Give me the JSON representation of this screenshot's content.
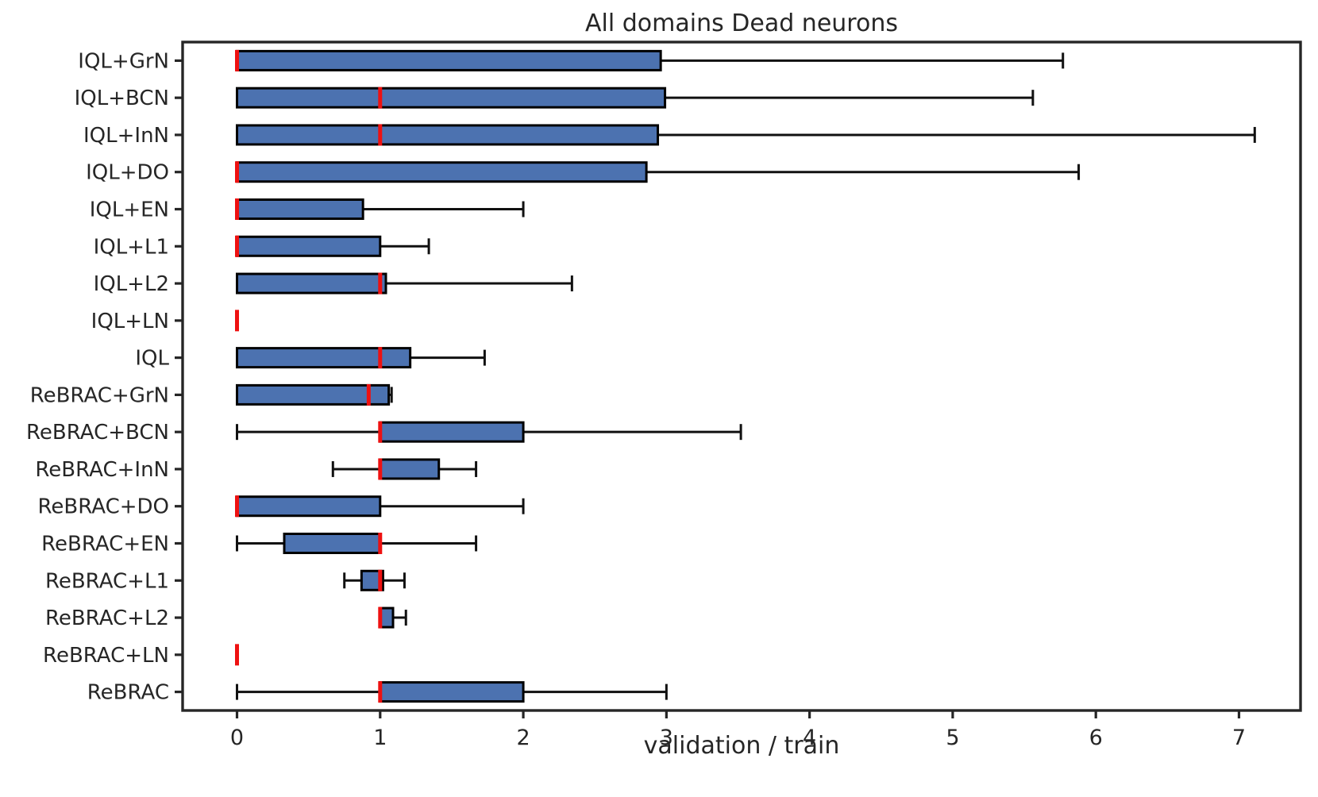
{
  "chart_data": {
    "type": "boxplot",
    "orientation": "horizontal",
    "title": "All domains Dead neurons",
    "xlabel": "validation / train",
    "xlim": [
      -0.38,
      7.43
    ],
    "xticks": [
      0,
      1,
      2,
      3,
      4,
      5,
      6,
      7
    ],
    "grid": false,
    "legend": "none",
    "categories": [
      "IQL+GrN",
      "IQL+BCN",
      "IQL+InN",
      "IQL+DO",
      "IQL+EN",
      "IQL+L1",
      "IQL+L2",
      "IQL+LN",
      "IQL",
      "ReBRAC+GrN",
      "ReBRAC+BCN",
      "ReBRAC+InN",
      "ReBRAC+DO",
      "ReBRAC+EN",
      "ReBRAC+L1",
      "ReBRAC+L2",
      "ReBRAC+LN",
      "ReBRAC"
    ],
    "boxes": [
      {
        "label": "IQL+GrN",
        "whislo": 0,
        "q1": 0,
        "med": 0,
        "q3": 2.96,
        "whishi": 5.77
      },
      {
        "label": "IQL+BCN",
        "whislo": 0,
        "q1": 0,
        "med": 1.0,
        "q3": 2.99,
        "whishi": 5.56
      },
      {
        "label": "IQL+InN",
        "whislo": 0,
        "q1": 0,
        "med": 1.0,
        "q3": 2.94,
        "whishi": 7.11
      },
      {
        "label": "IQL+DO",
        "whislo": 0,
        "q1": 0,
        "med": 0,
        "q3": 2.86,
        "whishi": 5.88
      },
      {
        "label": "IQL+EN",
        "whislo": 0,
        "q1": 0,
        "med": 0,
        "q3": 0.88,
        "whishi": 2.0
      },
      {
        "label": "IQL+L1",
        "whislo": 0,
        "q1": 0,
        "med": 0,
        "q3": 1.0,
        "whishi": 1.34
      },
      {
        "label": "IQL+L2",
        "whislo": 0,
        "q1": 0,
        "med": 1.0,
        "q3": 1.04,
        "whishi": 2.34
      },
      {
        "label": "IQL+LN",
        "whislo": 0,
        "q1": 0,
        "med": 0,
        "q3": 0,
        "whishi": 0
      },
      {
        "label": "IQL",
        "whislo": 0,
        "q1": 0,
        "med": 1.0,
        "q3": 1.21,
        "whishi": 1.73
      },
      {
        "label": "ReBRAC+GrN",
        "whislo": 0,
        "q1": 0,
        "med": 0.92,
        "q3": 1.06,
        "whishi": 1.08
      },
      {
        "label": "ReBRAC+BCN",
        "whislo": 0,
        "q1": 1.0,
        "med": 1.0,
        "q3": 2.0,
        "whishi": 3.52
      },
      {
        "label": "ReBRAC+InN",
        "whislo": 0.67,
        "q1": 1.0,
        "med": 1.0,
        "q3": 1.41,
        "whishi": 1.67
      },
      {
        "label": "ReBRAC+DO",
        "whislo": 0,
        "q1": 0,
        "med": 0,
        "q3": 1.0,
        "whishi": 2.0
      },
      {
        "label": "ReBRAC+EN",
        "whislo": 0,
        "q1": 0.33,
        "med": 1.0,
        "q3": 1.0,
        "whishi": 1.67
      },
      {
        "label": "ReBRAC+L1",
        "whislo": 0.75,
        "q1": 0.87,
        "med": 1.0,
        "q3": 1.02,
        "whishi": 1.17
      },
      {
        "label": "ReBRAC+L2",
        "whislo": 1.0,
        "q1": 1.0,
        "med": 1.0,
        "q3": 1.09,
        "whishi": 1.18
      },
      {
        "label": "ReBRAC+LN",
        "whislo": 0,
        "q1": 0,
        "med": 0,
        "q3": 0,
        "whishi": 0
      },
      {
        "label": "ReBRAC",
        "whislo": 0,
        "q1": 1.0,
        "med": 1.0,
        "q3": 2.0,
        "whishi": 3.0
      }
    ],
    "colors": {
      "box_fill": "#4C72B0",
      "box_edge": "#000000",
      "whisker": "#111111",
      "median": "#ee1111",
      "spine": "#262626",
      "text": "#262626"
    }
  }
}
